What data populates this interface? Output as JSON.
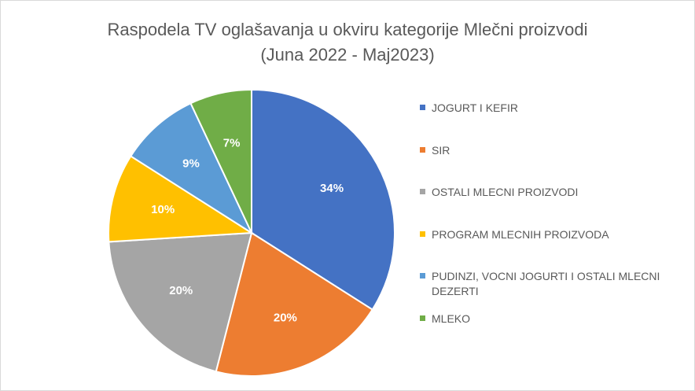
{
  "chart_data": {
    "type": "pie",
    "title_lines": [
      "Raspodela TV oglašavanja u okviru kategorije Mlečni proizvodi",
      "(Juna 2022 - Maj2023)"
    ],
    "slices": [
      {
        "label": "JOGURT I KEFIR",
        "value": 34,
        "display": "34%",
        "color": "#4472c4"
      },
      {
        "label": "SIR",
        "value": 20,
        "display": "20%",
        "color": "#ed7d31"
      },
      {
        "label": "OSTALI MLECNI PROIZVODI",
        "value": 20,
        "display": "20%",
        "color": "#a5a5a5"
      },
      {
        "label": "PROGRAM MLECNIH PROIZVODA",
        "value": 10,
        "display": "10%",
        "color": "#ffc000"
      },
      {
        "label": "PUDINZI, VOCNI JOGURTI I OSTALI MLECNI DEZERTI",
        "label_lines": [
          "PUDINZI, VOCNI JOGURTI I OSTALI MLECNI",
          "DEZERTI"
        ],
        "value": 9,
        "display": "9%",
        "color": "#5b9bd5"
      },
      {
        "label": "MLEKO",
        "value": 7,
        "display": "7%",
        "color": "#70ad47"
      }
    ],
    "legend_position": "right"
  }
}
